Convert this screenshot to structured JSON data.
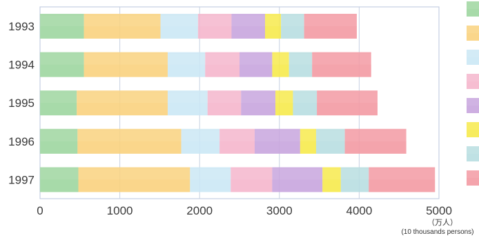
{
  "chart_data": {
    "type": "bar",
    "orientation": "horizontal",
    "stacked": true,
    "categories": [
      "1993",
      "1994",
      "1995",
      "1996",
      "1997"
    ],
    "series": [
      {
        "color": "#9fd6a0",
        "values": [
          550,
          550,
          460,
          470,
          480
        ]
      },
      {
        "color": "#f9d27f",
        "values": [
          960,
          1050,
          1140,
          1300,
          1400
        ]
      },
      {
        "color": "#cbe8f5",
        "values": [
          470,
          470,
          500,
          480,
          510
        ]
      },
      {
        "color": "#f5b6cc",
        "values": [
          420,
          430,
          420,
          440,
          520
        ]
      },
      {
        "color": "#c8a6de",
        "values": [
          420,
          410,
          430,
          570,
          630
        ]
      },
      {
        "color": "#f7ea4e",
        "values": [
          200,
          210,
          220,
          200,
          230
        ]
      },
      {
        "color": "#b8dee1",
        "values": [
          290,
          290,
          300,
          360,
          350
        ]
      },
      {
        "color": "#f39aa3",
        "values": [
          660,
          740,
          760,
          770,
          830
        ]
      }
    ],
    "xlim": [
      0,
      5000
    ],
    "x_ticks": [
      "0",
      "1000",
      "2000",
      "3000",
      "4000",
      "5000"
    ],
    "unit_label_line1": "（万人）",
    "unit_label_line2": "(10 thousands persons)",
    "grid": true,
    "legend": "right"
  }
}
